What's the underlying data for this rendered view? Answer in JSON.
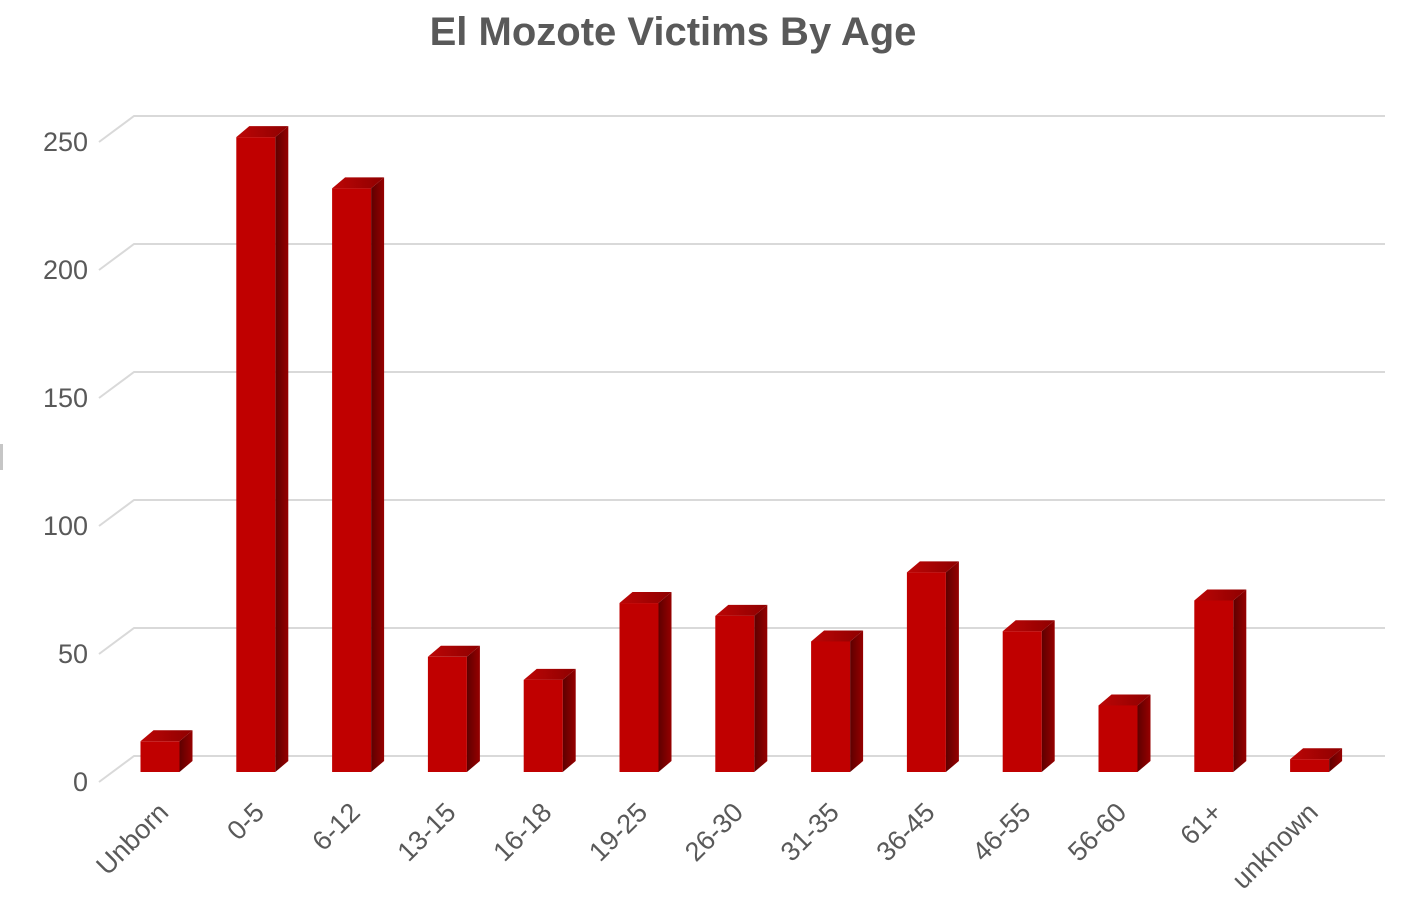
{
  "chart_data": {
    "type": "bar",
    "style": "3d-column",
    "title": "El Mozote Victims By Age",
    "categories": [
      "Unborn",
      "0-5",
      "6-12",
      "13-15",
      "16-18",
      "19-25",
      "26-30",
      "31-35",
      "36-45",
      "46-55",
      "56-60",
      "61+",
      "unknown"
    ],
    "values": [
      12,
      248,
      228,
      45,
      36,
      66,
      61,
      51,
      78,
      55,
      26,
      67,
      5
    ],
    "xlabel": "",
    "ylabel": "",
    "ylim": [
      0,
      250
    ],
    "yticks": [
      0,
      50,
      100,
      150,
      200,
      250
    ],
    "grid": true,
    "legend": "none",
    "colors": {
      "bar_front": "#C00000",
      "bar_top_light": "#BC0606",
      "bar_top_dark": "#8E0000",
      "bar_side_light": "#960000",
      "bar_side_dark": "#5E0000",
      "gridline": "#D9D9D9",
      "text": "#595959",
      "background": "#FFFFFF"
    }
  }
}
